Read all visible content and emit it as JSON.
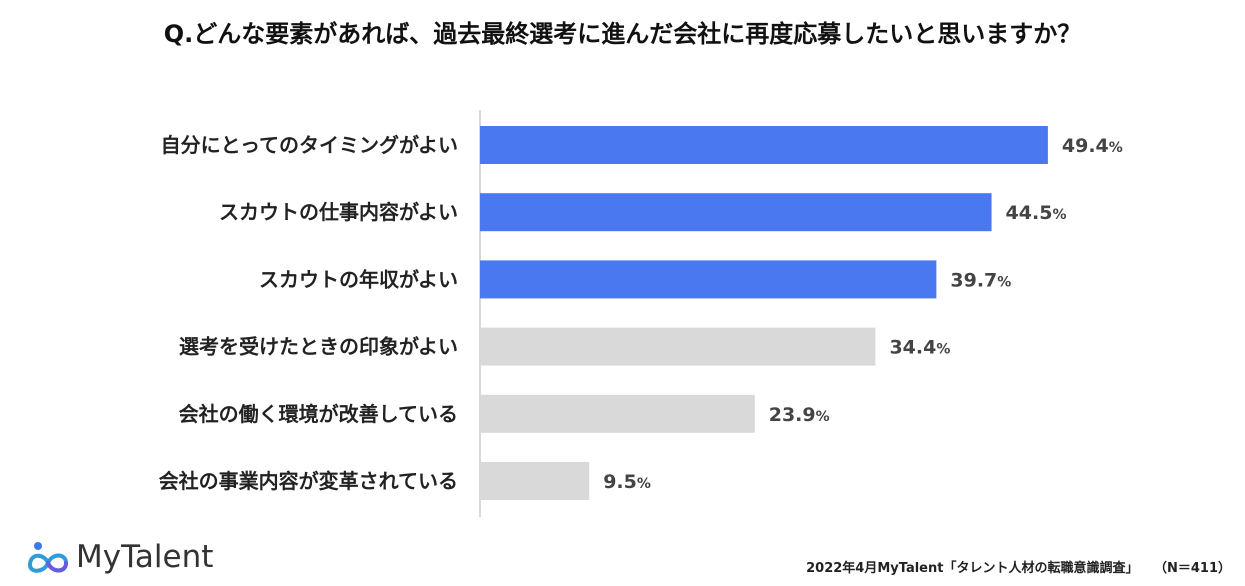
{
  "title": "Q.どんな要素があれば、過去最終選考に進んだ会社に再度応募したいと思いますか？",
  "chart_data": {
    "type": "bar",
    "orientation": "horizontal",
    "categories": [
      "自分にとってのタイミングがよい",
      "スカウトの仕事内容がよい",
      "スカウトの年収がよい",
      "選考を受けたときの印象がよい",
      "会社の働く環境が改善している",
      "会社の事業内容が変革されている"
    ],
    "values": [
      49.4,
      44.5,
      39.7,
      34.4,
      23.9,
      9.5
    ],
    "unit": "%",
    "highlight_count": 3,
    "colors": {
      "highlight": "#4a78f0",
      "normal": "#d9d9d9",
      "axis": "#cccccc"
    },
    "xlim": [
      0,
      57.5
    ],
    "grid": false,
    "legend": "none"
  },
  "brand": {
    "name": "MyTalent",
    "icon": "infinity-person-icon"
  },
  "source": {
    "text": "2022年4月MyTalent「タレント人材の転職意識調査」",
    "n": "（N＝411）"
  }
}
